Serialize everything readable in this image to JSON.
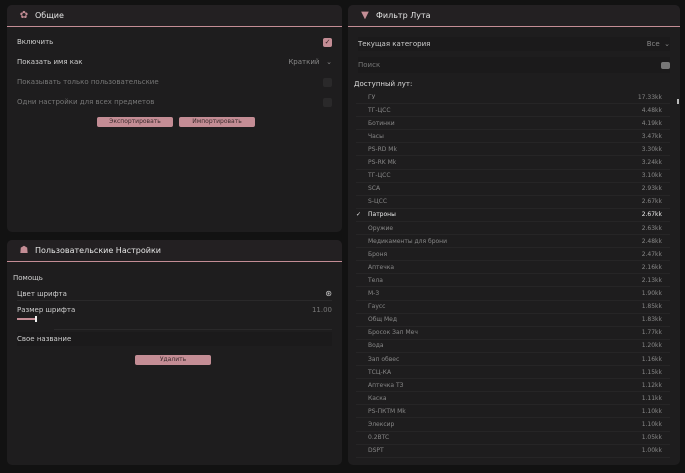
{
  "general": {
    "title": "Общие",
    "icon": "gear-icon",
    "enable_label": "Включить",
    "enable_checked": true,
    "show_name_label": "Показать имя как",
    "show_name_value": "Краткий",
    "only_custom_label": "Показывать только пользовательские",
    "only_custom_checked": false,
    "same_settings_label": "Одни настройки для всех предметов",
    "same_settings_checked": false,
    "export_label": "Экспортировать",
    "import_label": "Импортировать"
  },
  "custom": {
    "title": "Пользовательские Настройки",
    "icon": "user-icon",
    "section_label": "Помощь",
    "font_color_label": "Цвет шрифта",
    "font_size_label": "Размер шрифта",
    "font_size_value": "11.00",
    "font_size_fraction": 0.1,
    "custom_name_label": "Свое название",
    "delete_label": "Удалить"
  },
  "filter": {
    "title": "Фильтр Лута",
    "icon": "filter-icon",
    "category_label": "Текущая категория",
    "category_value": "Все",
    "search_placeholder": "Поиск",
    "available_label": "Доступный лут:",
    "items": [
      {
        "name": "ГУ",
        "value": "17.33kk"
      },
      {
        "name": "ТГ-ЦСС",
        "value": "4.48kk"
      },
      {
        "name": "Ботинки",
        "value": "4.19kk"
      },
      {
        "name": "Часы",
        "value": "3.47kk"
      },
      {
        "name": "PS-RD Mk",
        "value": "3.30kk"
      },
      {
        "name": "PS-RK Mk",
        "value": "3.24kk"
      },
      {
        "name": "ТГ-ЦСС",
        "value": "3.10kk"
      },
      {
        "name": "SCA",
        "value": "2.93kk"
      },
      {
        "name": "S-ЦСС",
        "value": "2.67kk"
      },
      {
        "name": "Патроны",
        "value": "2.67kk",
        "checked": true
      },
      {
        "name": "Оружие",
        "value": "2.63kk"
      },
      {
        "name": "Медикаменты для брони",
        "value": "2.48kk"
      },
      {
        "name": "Броня",
        "value": "2.47kk"
      },
      {
        "name": "Аптечка",
        "value": "2.16kk"
      },
      {
        "name": "Тела",
        "value": "2.13kk"
      },
      {
        "name": "М-3",
        "value": "1.90kk"
      },
      {
        "name": "Гаусс",
        "value": "1.85kk"
      },
      {
        "name": "Общ Мед",
        "value": "1.83kk"
      },
      {
        "name": "Бросок Зап Меч",
        "value": "1.77kk"
      },
      {
        "name": "Вода",
        "value": "1.20kk"
      },
      {
        "name": "Зап обвес",
        "value": "1.16kk"
      },
      {
        "name": "ТСЦ-КА",
        "value": "1.15kk"
      },
      {
        "name": "Аптечка ТЗ",
        "value": "1.12kk"
      },
      {
        "name": "Каска",
        "value": "1.11kk"
      },
      {
        "name": "PS-ПКТМ Mk",
        "value": "1.10kk"
      },
      {
        "name": "Элексир",
        "value": "1.10kk"
      },
      {
        "name": "0.2BTC",
        "value": "1.05kk"
      },
      {
        "name": "DSPT",
        "value": "1.00kk"
      }
    ]
  },
  "colors": {
    "accent": "#c48d95",
    "panel": "#1e1d1e",
    "background": "#121212"
  }
}
